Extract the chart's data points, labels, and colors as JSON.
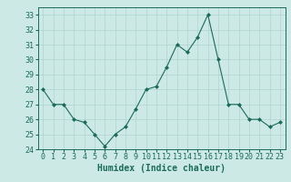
{
  "x": [
    0,
    1,
    2,
    3,
    4,
    5,
    6,
    7,
    8,
    9,
    10,
    11,
    12,
    13,
    14,
    15,
    16,
    17,
    18,
    19,
    20,
    21,
    22,
    23
  ],
  "y": [
    28,
    27,
    27,
    26,
    25.8,
    25,
    24.2,
    25,
    25.5,
    26.7,
    28,
    28.2,
    29.5,
    31,
    30.5,
    31.5,
    33,
    30,
    27,
    27,
    26,
    26,
    25.5,
    25.8
  ],
  "line_color": "#1a6b5a",
  "marker": "D",
  "marker_size": 2,
  "bg_color": "#cce9e5",
  "grid_color": "#aed4cf",
  "xlabel": "Humidex (Indice chaleur)",
  "ylim": [
    24,
    33.5
  ],
  "yticks": [
    24,
    25,
    26,
    27,
    28,
    29,
    30,
    31,
    32,
    33
  ],
  "xticks": [
    0,
    1,
    2,
    3,
    4,
    5,
    6,
    7,
    8,
    9,
    10,
    11,
    12,
    13,
    14,
    15,
    16,
    17,
    18,
    19,
    20,
    21,
    22,
    23
  ],
  "tick_color": "#1a6b5a",
  "xlabel_fontsize": 7,
  "tick_fontsize": 6
}
